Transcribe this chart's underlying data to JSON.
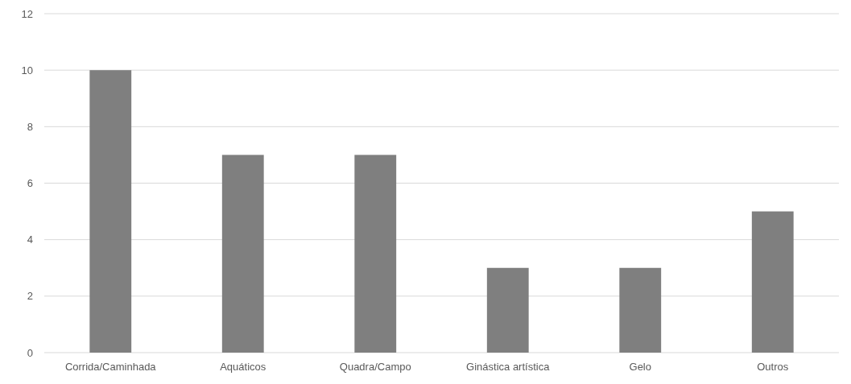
{
  "chart_data": {
    "type": "bar",
    "categories": [
      "Corrida/Caminhada",
      "Aquáticos",
      "Quadra/Campo",
      "Ginástica artística",
      "Gelo",
      "Outros"
    ],
    "values": [
      10,
      7,
      7,
      3,
      3,
      5
    ],
    "color": "#7f7f7f",
    "ylim": [
      0,
      12
    ],
    "yticks": [
      0,
      2,
      4,
      6,
      8,
      10,
      12
    ],
    "grid": "y"
  }
}
